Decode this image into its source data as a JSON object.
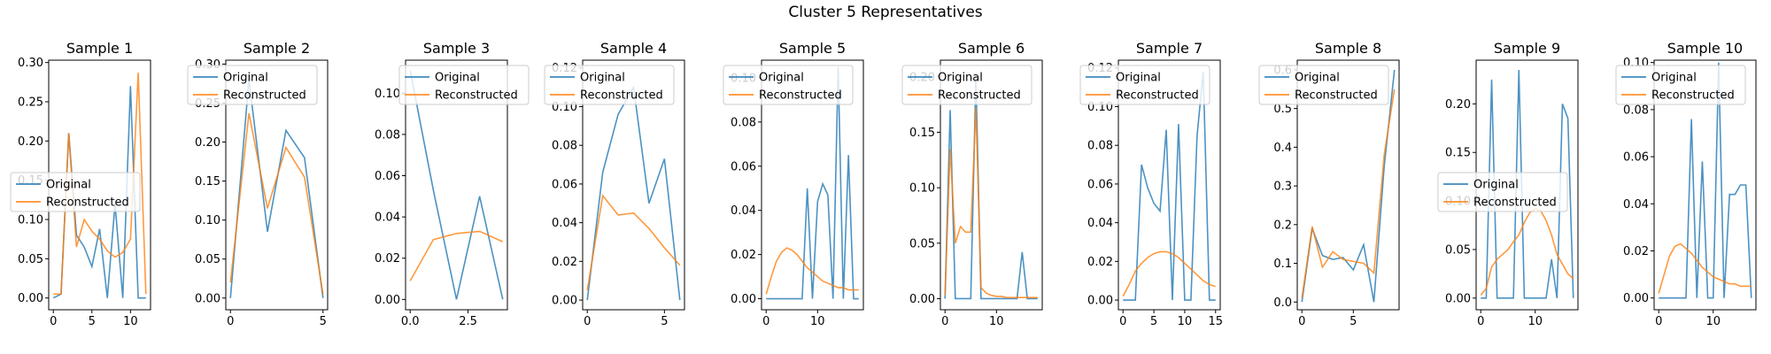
{
  "figure": {
    "suptitle": "Cluster 5 Representatives"
  },
  "chart_data": [
    {
      "type": "line",
      "title": "Sample 1",
      "xlim": [
        -0.6,
        12.6
      ],
      "ylim": [
        -0.015,
        0.303
      ],
      "xticks": [
        0,
        5,
        10
      ],
      "yticks": [
        0.0,
        0.05,
        0.1,
        0.15,
        0.2,
        0.25,
        0.3
      ],
      "ytick_labels": [
        "0.00",
        "0.05",
        "0.10",
        "0.15",
        "0.20",
        "0.25",
        "0.30"
      ],
      "legend": {
        "position": "center-left",
        "entries": [
          "Original",
          "Reconstructed"
        ]
      },
      "series": [
        {
          "name": "Original",
          "color": "#1f77b4",
          "x": [
            0,
            1,
            2,
            3,
            4,
            5,
            6,
            7,
            8,
            9,
            10,
            11,
            12
          ],
          "values": [
            0.0,
            0.005,
            0.21,
            0.08,
            0.065,
            0.04,
            0.088,
            0.0,
            0.12,
            0.0,
            0.27,
            0.0,
            0.0
          ]
        },
        {
          "name": "Reconstructed",
          "color": "#ff7f0e",
          "x": [
            0,
            1,
            2,
            3,
            4,
            5,
            6,
            7,
            8,
            9,
            10,
            11,
            12
          ],
          "values": [
            0.005,
            0.005,
            0.21,
            0.065,
            0.1,
            0.085,
            0.075,
            0.06,
            0.052,
            0.058,
            0.075,
            0.287,
            0.005
          ]
        }
      ]
    },
    {
      "type": "line",
      "title": "Sample 2",
      "xlim": [
        -0.25,
        5.25
      ],
      "ylim": [
        -0.015,
        0.305
      ],
      "xticks": [
        0,
        5
      ],
      "yticks": [
        0.0,
        0.05,
        0.1,
        0.15,
        0.2,
        0.25,
        0.3
      ],
      "ytick_labels": [
        "0.00",
        "0.05",
        "0.10",
        "0.15",
        "0.20",
        "0.25",
        "0.30"
      ],
      "legend": {
        "position": "upper-left",
        "entries": [
          "Original",
          "Reconstructed"
        ]
      },
      "series": [
        {
          "name": "Original",
          "color": "#1f77b4",
          "x": [
            0,
            1,
            2,
            3,
            4,
            5
          ],
          "values": [
            0.0,
            0.28,
            0.085,
            0.215,
            0.18,
            0.0
          ]
        },
        {
          "name": "Reconstructed",
          "color": "#ff7f0e",
          "x": [
            0,
            1,
            2,
            3,
            4,
            5
          ],
          "values": [
            0.02,
            0.237,
            0.115,
            0.193,
            0.155,
            0.005
          ]
        }
      ]
    },
    {
      "type": "line",
      "title": "Sample 3",
      "xlim": [
        -0.2,
        4.2
      ],
      "ylim": [
        -0.005,
        0.116
      ],
      "xticks": [
        0.0,
        2.5
      ],
      "xtick_labels": [
        "0.0",
        "2.5"
      ],
      "yticks": [
        0.0,
        0.02,
        0.04,
        0.06,
        0.08,
        0.1
      ],
      "ytick_labels": [
        "0.00",
        "0.02",
        "0.04",
        "0.06",
        "0.08",
        "0.10"
      ],
      "legend": {
        "position": "upper-right",
        "entries": [
          "Original",
          "Reconstructed"
        ]
      },
      "series": [
        {
          "name": "Original",
          "color": "#1f77b4",
          "x": [
            0,
            1,
            2,
            3,
            4
          ],
          "values": [
            0.111,
            0.053,
            0.0,
            0.05,
            0.0
          ]
        },
        {
          "name": "Reconstructed",
          "color": "#ff7f0e",
          "x": [
            0,
            1,
            2,
            3,
            4
          ],
          "values": [
            0.009,
            0.029,
            0.032,
            0.033,
            0.028
          ]
        }
      ]
    },
    {
      "type": "line",
      "title": "Sample 4",
      "xlim": [
        -0.3,
        6.3
      ],
      "ylim": [
        -0.005,
        0.124
      ],
      "xticks": [
        0,
        5
      ],
      "yticks": [
        0.0,
        0.02,
        0.04,
        0.06,
        0.08,
        0.1,
        0.12
      ],
      "ytick_labels": [
        "0.00",
        "0.02",
        "0.04",
        "0.06",
        "0.08",
        "0.10",
        "0.12"
      ],
      "legend": {
        "position": "upper-left",
        "entries": [
          "Original",
          "Reconstructed"
        ]
      },
      "series": [
        {
          "name": "Original",
          "color": "#1f77b4",
          "x": [
            0,
            1,
            2,
            3,
            4,
            5,
            6
          ],
          "values": [
            0.0,
            0.066,
            0.096,
            0.11,
            0.05,
            0.073,
            0.0
          ]
        },
        {
          "name": "Reconstructed",
          "color": "#ff7f0e",
          "x": [
            0,
            1,
            2,
            3,
            4,
            5,
            6
          ],
          "values": [
            0.005,
            0.054,
            0.044,
            0.045,
            0.037,
            0.027,
            0.018
          ]
        }
      ]
    },
    {
      "type": "line",
      "title": "Sample 5",
      "xlim": [
        -0.9,
        18.9
      ],
      "ylim": [
        -0.005,
        0.108
      ],
      "xticks": [
        0,
        10
      ],
      "yticks": [
        0.0,
        0.02,
        0.04,
        0.06,
        0.08,
        0.1
      ],
      "ytick_labels": [
        "0.00",
        "0.02",
        "0.04",
        "0.06",
        "0.08",
        "0.10"
      ],
      "legend": {
        "position": "upper-left",
        "entries": [
          "Original",
          "Reconstructed"
        ]
      },
      "series": [
        {
          "name": "Original",
          "color": "#1f77b4",
          "x": [
            0,
            1,
            2,
            3,
            4,
            5,
            6,
            7,
            8,
            9,
            10,
            11,
            12,
            13,
            14,
            15,
            16,
            17,
            18
          ],
          "values": [
            0,
            0,
            0,
            0,
            0,
            0,
            0,
            0,
            0.05,
            0,
            0.044,
            0.052,
            0.047,
            0,
            0.105,
            0,
            0.065,
            0,
            0
          ]
        },
        {
          "name": "Reconstructed",
          "color": "#ff7f0e",
          "x": [
            0,
            1,
            2,
            3,
            4,
            5,
            6,
            7,
            8,
            9,
            10,
            11,
            12,
            13,
            14,
            15,
            16,
            17,
            18
          ],
          "values": [
            0.002,
            0.01,
            0.017,
            0.021,
            0.023,
            0.022,
            0.02,
            0.017,
            0.014,
            0.012,
            0.01,
            0.008,
            0.007,
            0.006,
            0.005,
            0.005,
            0.004,
            0.004,
            0.004
          ]
        }
      ]
    },
    {
      "type": "line",
      "title": "Sample 6",
      "xlim": [
        -0.9,
        18.9
      ],
      "ylim": [
        -0.01,
        0.215
      ],
      "xticks": [
        0,
        10
      ],
      "yticks": [
        0.0,
        0.05,
        0.1,
        0.15,
        0.2
      ],
      "ytick_labels": [
        "0.00",
        "0.05",
        "0.10",
        "0.15",
        "0.20"
      ],
      "legend": {
        "position": "upper-left",
        "entries": [
          "Original",
          "Reconstructed"
        ]
      },
      "series": [
        {
          "name": "Original",
          "color": "#1f77b4",
          "x": [
            0,
            1,
            2,
            3,
            4,
            5,
            6,
            7,
            8,
            9,
            10,
            11,
            12,
            13,
            14,
            15,
            16,
            17,
            18
          ],
          "values": [
            0,
            0.17,
            0,
            0,
            0,
            0,
            0.2,
            0,
            0,
            0,
            0,
            0,
            0,
            0,
            0,
            0.042,
            0,
            0,
            0
          ]
        },
        {
          "name": "Reconstructed",
          "color": "#ff7f0e",
          "x": [
            0,
            1,
            2,
            3,
            4,
            5,
            6,
            7,
            8,
            9,
            10,
            11,
            12,
            13,
            14,
            15,
            16,
            17,
            18
          ],
          "values": [
            0.003,
            0.135,
            0.05,
            0.065,
            0.06,
            0.06,
            0.172,
            0.01,
            0.005,
            0.003,
            0.002,
            0.002,
            0.001,
            0.001,
            0.001,
            0.001,
            0.001,
            0.001,
            0.001
          ]
        }
      ]
    },
    {
      "type": "line",
      "title": "Sample 7",
      "xlim": [
        -0.75,
        15.75
      ],
      "ylim": [
        -0.005,
        0.124
      ],
      "xticks": [
        0,
        5,
        10,
        15
      ],
      "yticks": [
        0.0,
        0.02,
        0.04,
        0.06,
        0.08,
        0.1,
        0.12
      ],
      "ytick_labels": [
        "0.00",
        "0.02",
        "0.04",
        "0.06",
        "0.08",
        "0.10",
        "0.12"
      ],
      "legend": {
        "position": "upper-left",
        "entries": [
          "Original",
          "Reconstructed"
        ]
      },
      "series": [
        {
          "name": "Original",
          "color": "#1f77b4",
          "x": [
            0,
            1,
            2,
            3,
            4,
            5,
            6,
            7,
            8,
            9,
            10,
            11,
            12,
            13,
            14,
            15
          ],
          "values": [
            0,
            0,
            0,
            0.07,
            0.058,
            0.05,
            0.046,
            0.088,
            0,
            0.091,
            0,
            0,
            0.085,
            0.118,
            0,
            0
          ]
        },
        {
          "name": "Reconstructed",
          "color": "#ff7f0e",
          "x": [
            0,
            1,
            2,
            3,
            4,
            5,
            6,
            7,
            8,
            9,
            10,
            11,
            12,
            13,
            14,
            15
          ],
          "values": [
            0.002,
            0.008,
            0.015,
            0.019,
            0.022,
            0.024,
            0.025,
            0.025,
            0.024,
            0.022,
            0.019,
            0.016,
            0.013,
            0.01,
            0.008,
            0.007
          ]
        }
      ]
    },
    {
      "type": "line",
      "title": "Sample 8",
      "xlim": [
        -0.45,
        9.45
      ],
      "ylim": [
        -0.02,
        0.625
      ],
      "xticks": [
        0,
        5
      ],
      "yticks": [
        0.0,
        0.1,
        0.2,
        0.3,
        0.4,
        0.5,
        0.6
      ],
      "ytick_labels": [
        "0.0",
        "0.1",
        "0.2",
        "0.3",
        "0.4",
        "0.5",
        "0.6"
      ],
      "legend": {
        "position": "upper-left",
        "entries": [
          "Original",
          "Reconstructed"
        ]
      },
      "series": [
        {
          "name": "Original",
          "color": "#1f77b4",
          "x": [
            0,
            1,
            2,
            3,
            4,
            5,
            6,
            7,
            8,
            9
          ],
          "values": [
            0.0,
            0.19,
            0.12,
            0.11,
            0.115,
            0.083,
            0.148,
            0.0,
            0.35,
            0.6
          ]
        },
        {
          "name": "Reconstructed",
          "color": "#ff7f0e",
          "x": [
            0,
            1,
            2,
            3,
            4,
            5,
            6,
            7,
            8,
            9
          ],
          "values": [
            0.01,
            0.195,
            0.09,
            0.13,
            0.11,
            0.105,
            0.1,
            0.075,
            0.38,
            0.55
          ]
        }
      ]
    },
    {
      "type": "line",
      "title": "Sample 9",
      "xlim": [
        -0.85,
        17.85
      ],
      "ylim": [
        -0.012,
        0.245
      ],
      "xticks": [
        0,
        10
      ],
      "yticks": [
        0.0,
        0.05,
        0.1,
        0.15,
        0.2
      ],
      "ytick_labels": [
        "0.00",
        "0.05",
        "0.10",
        "0.15",
        "0.20"
      ],
      "legend": {
        "position": "center-left",
        "entries": [
          "Original",
          "Reconstructed"
        ]
      },
      "series": [
        {
          "name": "Original",
          "color": "#1f77b4",
          "x": [
            0,
            1,
            2,
            3,
            4,
            5,
            6,
            7,
            8,
            9,
            10,
            11,
            12,
            13,
            14,
            15,
            16,
            17
          ],
          "values": [
            0,
            0,
            0.225,
            0,
            0,
            0,
            0,
            0.235,
            0,
            0,
            0,
            0,
            0,
            0.04,
            0,
            0.2,
            0.185,
            0
          ]
        },
        {
          "name": "Reconstructed",
          "color": "#ff7f0e",
          "x": [
            0,
            1,
            2,
            3,
            4,
            5,
            6,
            7,
            8,
            9,
            10,
            11,
            12,
            13,
            14,
            15,
            16,
            17
          ],
          "values": [
            0.003,
            0.01,
            0.032,
            0.04,
            0.045,
            0.05,
            0.058,
            0.065,
            0.078,
            0.088,
            0.092,
            0.09,
            0.08,
            0.065,
            0.045,
            0.035,
            0.025,
            0.02
          ]
        }
      ]
    },
    {
      "type": "line",
      "title": "Sample 10",
      "xlim": [
        -0.85,
        17.85
      ],
      "ylim": [
        -0.005,
        0.101
      ],
      "xticks": [
        0,
        10
      ],
      "yticks": [
        0.0,
        0.02,
        0.04,
        0.06,
        0.08,
        0.1
      ],
      "ytick_labels": [
        "0.00",
        "0.02",
        "0.04",
        "0.06",
        "0.08",
        "0.10"
      ],
      "legend": {
        "position": "upper-left",
        "entries": [
          "Original",
          "Reconstructed"
        ]
      },
      "series": [
        {
          "name": "Original",
          "color": "#1f77b4",
          "x": [
            0,
            1,
            2,
            3,
            4,
            5,
            6,
            7,
            8,
            9,
            10,
            11,
            12,
            13,
            14,
            15,
            16,
            17
          ],
          "values": [
            0,
            0,
            0,
            0,
            0,
            0,
            0.076,
            0,
            0.058,
            0,
            0,
            0.1,
            0,
            0.044,
            0.044,
            0.048,
            0.048,
            0
          ]
        },
        {
          "name": "Reconstructed",
          "color": "#ff7f0e",
          "x": [
            0,
            1,
            2,
            3,
            4,
            5,
            6,
            7,
            8,
            9,
            10,
            11,
            12,
            13,
            14,
            15,
            16,
            17
          ],
          "values": [
            0.002,
            0.01,
            0.018,
            0.022,
            0.023,
            0.021,
            0.019,
            0.016,
            0.013,
            0.011,
            0.009,
            0.008,
            0.007,
            0.006,
            0.006,
            0.005,
            0.005,
            0.005
          ]
        }
      ]
    }
  ]
}
